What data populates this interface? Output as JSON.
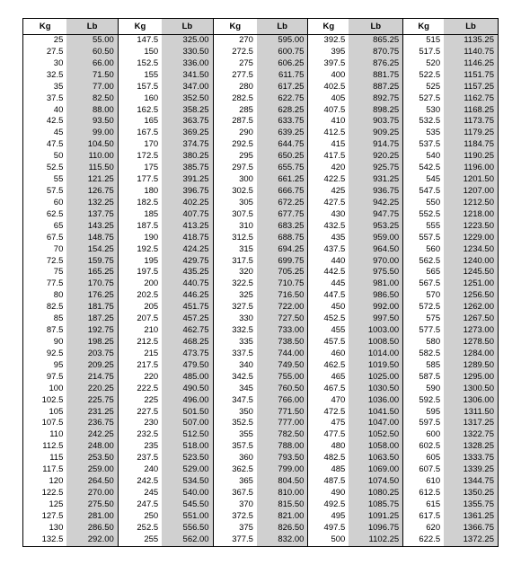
{
  "headers": {
    "kg": "Kg",
    "lb": "Lb"
  },
  "blocks": [
    [
      {
        "kg": "25",
        "lb": "55.00"
      },
      {
        "kg": "27.5",
        "lb": "60.50"
      },
      {
        "kg": "30",
        "lb": "66.00"
      },
      {
        "kg": "32.5",
        "lb": "71.50"
      },
      {
        "kg": "35",
        "lb": "77.00"
      },
      {
        "kg": "37.5",
        "lb": "82.50"
      },
      {
        "kg": "40",
        "lb": "88.00"
      },
      {
        "kg": "42.5",
        "lb": "93.50"
      },
      {
        "kg": "45",
        "lb": "99.00"
      },
      {
        "kg": "47.5",
        "lb": "104.50"
      },
      {
        "kg": "50",
        "lb": "110.00"
      },
      {
        "kg": "52.5",
        "lb": "115.50"
      },
      {
        "kg": "55",
        "lb": "121.25"
      },
      {
        "kg": "57.5",
        "lb": "126.75"
      },
      {
        "kg": "60",
        "lb": "132.25"
      },
      {
        "kg": "62.5",
        "lb": "137.75"
      },
      {
        "kg": "65",
        "lb": "143.25"
      },
      {
        "kg": "67.5",
        "lb": "148.75"
      },
      {
        "kg": "70",
        "lb": "154.25"
      },
      {
        "kg": "72.5",
        "lb": "159.75"
      },
      {
        "kg": "75",
        "lb": "165.25"
      },
      {
        "kg": "77.5",
        "lb": "170.75"
      },
      {
        "kg": "80",
        "lb": "176.25"
      },
      {
        "kg": "82.5",
        "lb": "181.75"
      },
      {
        "kg": "85",
        "lb": "187.25"
      },
      {
        "kg": "87.5",
        "lb": "192.75"
      },
      {
        "kg": "90",
        "lb": "198.25"
      },
      {
        "kg": "92.5",
        "lb": "203.75"
      },
      {
        "kg": "95",
        "lb": "209.25"
      },
      {
        "kg": "97.5",
        "lb": "214.75"
      },
      {
        "kg": "100",
        "lb": "220.25"
      },
      {
        "kg": "102.5",
        "lb": "225.75"
      },
      {
        "kg": "105",
        "lb": "231.25"
      },
      {
        "kg": "107.5",
        "lb": "236.75"
      },
      {
        "kg": "110",
        "lb": "242.25"
      },
      {
        "kg": "112.5",
        "lb": "248.00"
      },
      {
        "kg": "115",
        "lb": "253.50"
      },
      {
        "kg": "117.5",
        "lb": "259.00"
      },
      {
        "kg": "120",
        "lb": "264.50"
      },
      {
        "kg": "122.5",
        "lb": "270.00"
      },
      {
        "kg": "125",
        "lb": "275.50"
      },
      {
        "kg": "127.5",
        "lb": "281.00"
      },
      {
        "kg": "130",
        "lb": "286.50"
      },
      {
        "kg": "132.5",
        "lb": "292.00"
      }
    ],
    [
      {
        "kg": "147.5",
        "lb": "325.00"
      },
      {
        "kg": "150",
        "lb": "330.50"
      },
      {
        "kg": "152.5",
        "lb": "336.00"
      },
      {
        "kg": "155",
        "lb": "341.50"
      },
      {
        "kg": "157.5",
        "lb": "347.00"
      },
      {
        "kg": "160",
        "lb": "352.50"
      },
      {
        "kg": "162.5",
        "lb": "358.25"
      },
      {
        "kg": "165",
        "lb": "363.75"
      },
      {
        "kg": "167.5",
        "lb": "369.25"
      },
      {
        "kg": "170",
        "lb": "374.75"
      },
      {
        "kg": "172.5",
        "lb": "380.25"
      },
      {
        "kg": "175",
        "lb": "385.75"
      },
      {
        "kg": "177.5",
        "lb": "391.25"
      },
      {
        "kg": "180",
        "lb": "396.75"
      },
      {
        "kg": "182.5",
        "lb": "402.25"
      },
      {
        "kg": "185",
        "lb": "407.75"
      },
      {
        "kg": "187.5",
        "lb": "413.25"
      },
      {
        "kg": "190",
        "lb": "418.75"
      },
      {
        "kg": "192.5",
        "lb": "424.25"
      },
      {
        "kg": "195",
        "lb": "429.75"
      },
      {
        "kg": "197.5",
        "lb": "435.25"
      },
      {
        "kg": "200",
        "lb": "440.75"
      },
      {
        "kg": "202.5",
        "lb": "446.25"
      },
      {
        "kg": "205",
        "lb": "451.75"
      },
      {
        "kg": "207.5",
        "lb": "457.25"
      },
      {
        "kg": "210",
        "lb": "462.75"
      },
      {
        "kg": "212.5",
        "lb": "468.25"
      },
      {
        "kg": "215",
        "lb": "473.75"
      },
      {
        "kg": "217.5",
        "lb": "479.50"
      },
      {
        "kg": "220",
        "lb": "485.00"
      },
      {
        "kg": "222.5",
        "lb": "490.50"
      },
      {
        "kg": "225",
        "lb": "496.00"
      },
      {
        "kg": "227.5",
        "lb": "501.50"
      },
      {
        "kg": "230",
        "lb": "507.00"
      },
      {
        "kg": "232.5",
        "lb": "512.50"
      },
      {
        "kg": "235",
        "lb": "518.00"
      },
      {
        "kg": "237.5",
        "lb": "523.50"
      },
      {
        "kg": "240",
        "lb": "529.00"
      },
      {
        "kg": "242.5",
        "lb": "534.50"
      },
      {
        "kg": "245",
        "lb": "540.00"
      },
      {
        "kg": "247.5",
        "lb": "545.50"
      },
      {
        "kg": "250",
        "lb": "551.00"
      },
      {
        "kg": "252.5",
        "lb": "556.50"
      },
      {
        "kg": "255",
        "lb": "562.00"
      }
    ],
    [
      {
        "kg": "270",
        "lb": "595.00"
      },
      {
        "kg": "272.5",
        "lb": "600.75"
      },
      {
        "kg": "275",
        "lb": "606.25"
      },
      {
        "kg": "277.5",
        "lb": "611.75"
      },
      {
        "kg": "280",
        "lb": "617.25"
      },
      {
        "kg": "282.5",
        "lb": "622.75"
      },
      {
        "kg": "285",
        "lb": "628.25"
      },
      {
        "kg": "287.5",
        "lb": "633.75"
      },
      {
        "kg": "290",
        "lb": "639.25"
      },
      {
        "kg": "292.5",
        "lb": "644.75"
      },
      {
        "kg": "295",
        "lb": "650.25"
      },
      {
        "kg": "297.5",
        "lb": "655.75"
      },
      {
        "kg": "300",
        "lb": "661.25"
      },
      {
        "kg": "302.5",
        "lb": "666.75"
      },
      {
        "kg": "305",
        "lb": "672.25"
      },
      {
        "kg": "307.5",
        "lb": "677.75"
      },
      {
        "kg": "310",
        "lb": "683.25"
      },
      {
        "kg": "312.5",
        "lb": "688.75"
      },
      {
        "kg": "315",
        "lb": "694.25"
      },
      {
        "kg": "317.5",
        "lb": "699.75"
      },
      {
        "kg": "320",
        "lb": "705.25"
      },
      {
        "kg": "322.5",
        "lb": "710.75"
      },
      {
        "kg": "325",
        "lb": "716.50"
      },
      {
        "kg": "327.5",
        "lb": "722.00"
      },
      {
        "kg": "330",
        "lb": "727.50"
      },
      {
        "kg": "332.5",
        "lb": "733.00"
      },
      {
        "kg": "335",
        "lb": "738.50"
      },
      {
        "kg": "337.5",
        "lb": "744.00"
      },
      {
        "kg": "340",
        "lb": "749.50"
      },
      {
        "kg": "342.5",
        "lb": "755.00"
      },
      {
        "kg": "345",
        "lb": "760.50"
      },
      {
        "kg": "347.5",
        "lb": "766.00"
      },
      {
        "kg": "350",
        "lb": "771.50"
      },
      {
        "kg": "352.5",
        "lb": "777.00"
      },
      {
        "kg": "355",
        "lb": "782.50"
      },
      {
        "kg": "357.5",
        "lb": "788.00"
      },
      {
        "kg": "360",
        "lb": "793.50"
      },
      {
        "kg": "362.5",
        "lb": "799.00"
      },
      {
        "kg": "365",
        "lb": "804.50"
      },
      {
        "kg": "367.5",
        "lb": "810.00"
      },
      {
        "kg": "370",
        "lb": "815.50"
      },
      {
        "kg": "372.5",
        "lb": "821.00"
      },
      {
        "kg": "375",
        "lb": "826.50"
      },
      {
        "kg": "377.5",
        "lb": "832.00"
      }
    ],
    [
      {
        "kg": "392.5",
        "lb": "865.25"
      },
      {
        "kg": "395",
        "lb": "870.75"
      },
      {
        "kg": "397.5",
        "lb": "876.25"
      },
      {
        "kg": "400",
        "lb": "881.75"
      },
      {
        "kg": "402.5",
        "lb": "887.25"
      },
      {
        "kg": "405",
        "lb": "892.75"
      },
      {
        "kg": "407.5",
        "lb": "898.25"
      },
      {
        "kg": "410",
        "lb": "903.75"
      },
      {
        "kg": "412.5",
        "lb": "909.25"
      },
      {
        "kg": "415",
        "lb": "914.75"
      },
      {
        "kg": "417.5",
        "lb": "920.25"
      },
      {
        "kg": "420",
        "lb": "925.75"
      },
      {
        "kg": "422.5",
        "lb": "931.25"
      },
      {
        "kg": "425",
        "lb": "936.75"
      },
      {
        "kg": "427.5",
        "lb": "942.25"
      },
      {
        "kg": "430",
        "lb": "947.75"
      },
      {
        "kg": "432.5",
        "lb": "953.25"
      },
      {
        "kg": "435",
        "lb": "959.00"
      },
      {
        "kg": "437.5",
        "lb": "964.50"
      },
      {
        "kg": "440",
        "lb": "970.00"
      },
      {
        "kg": "442.5",
        "lb": "975.50"
      },
      {
        "kg": "445",
        "lb": "981.00"
      },
      {
        "kg": "447.5",
        "lb": "986.50"
      },
      {
        "kg": "450",
        "lb": "992.00"
      },
      {
        "kg": "452.5",
        "lb": "997.50"
      },
      {
        "kg": "455",
        "lb": "1003.00"
      },
      {
        "kg": "457.5",
        "lb": "1008.50"
      },
      {
        "kg": "460",
        "lb": "1014.00"
      },
      {
        "kg": "462.5",
        "lb": "1019.50"
      },
      {
        "kg": "465",
        "lb": "1025.00"
      },
      {
        "kg": "467.5",
        "lb": "1030.50"
      },
      {
        "kg": "470",
        "lb": "1036.00"
      },
      {
        "kg": "472.5",
        "lb": "1041.50"
      },
      {
        "kg": "475",
        "lb": "1047.00"
      },
      {
        "kg": "477.5",
        "lb": "1052.50"
      },
      {
        "kg": "480",
        "lb": "1058.00"
      },
      {
        "kg": "482.5",
        "lb": "1063.50"
      },
      {
        "kg": "485",
        "lb": "1069.00"
      },
      {
        "kg": "487.5",
        "lb": "1074.50"
      },
      {
        "kg": "490",
        "lb": "1080.25"
      },
      {
        "kg": "492.5",
        "lb": "1085.75"
      },
      {
        "kg": "495",
        "lb": "1091.25"
      },
      {
        "kg": "497.5",
        "lb": "1096.75"
      },
      {
        "kg": "500",
        "lb": "1102.25"
      }
    ],
    [
      {
        "kg": "515",
        "lb": "1135.25"
      },
      {
        "kg": "517.5",
        "lb": "1140.75"
      },
      {
        "kg": "520",
        "lb": "1146.25"
      },
      {
        "kg": "522.5",
        "lb": "1151.75"
      },
      {
        "kg": "525",
        "lb": "1157.25"
      },
      {
        "kg": "527.5",
        "lb": "1162.75"
      },
      {
        "kg": "530",
        "lb": "1168.25"
      },
      {
        "kg": "532.5",
        "lb": "1173.75"
      },
      {
        "kg": "535",
        "lb": "1179.25"
      },
      {
        "kg": "537.5",
        "lb": "1184.75"
      },
      {
        "kg": "540",
        "lb": "1190.25"
      },
      {
        "kg": "542.5",
        "lb": "1196.00"
      },
      {
        "kg": "545",
        "lb": "1201.50"
      },
      {
        "kg": "547.5",
        "lb": "1207.00"
      },
      {
        "kg": "550",
        "lb": "1212.50"
      },
      {
        "kg": "552.5",
        "lb": "1218.00"
      },
      {
        "kg": "555",
        "lb": "1223.50"
      },
      {
        "kg": "557.5",
        "lb": "1229.00"
      },
      {
        "kg": "560",
        "lb": "1234.50"
      },
      {
        "kg": "562.5",
        "lb": "1240.00"
      },
      {
        "kg": "565",
        "lb": "1245.50"
      },
      {
        "kg": "567.5",
        "lb": "1251.00"
      },
      {
        "kg": "570",
        "lb": "1256.50"
      },
      {
        "kg": "572.5",
        "lb": "1262.00"
      },
      {
        "kg": "575",
        "lb": "1267.50"
      },
      {
        "kg": "577.5",
        "lb": "1273.00"
      },
      {
        "kg": "580",
        "lb": "1278.50"
      },
      {
        "kg": "582.5",
        "lb": "1284.00"
      },
      {
        "kg": "585",
        "lb": "1289.50"
      },
      {
        "kg": "587.5",
        "lb": "1295.00"
      },
      {
        "kg": "590",
        "lb": "1300.50"
      },
      {
        "kg": "592.5",
        "lb": "1306.00"
      },
      {
        "kg": "595",
        "lb": "1311.50"
      },
      {
        "kg": "597.5",
        "lb": "1317.25"
      },
      {
        "kg": "600",
        "lb": "1322.75"
      },
      {
        "kg": "602.5",
        "lb": "1328.25"
      },
      {
        "kg": "605",
        "lb": "1333.75"
      },
      {
        "kg": "607.5",
        "lb": "1339.25"
      },
      {
        "kg": "610",
        "lb": "1344.75"
      },
      {
        "kg": "612.5",
        "lb": "1350.25"
      },
      {
        "kg": "615",
        "lb": "1355.75"
      },
      {
        "kg": "617.5",
        "lb": "1361.25"
      },
      {
        "kg": "620",
        "lb": "1366.75"
      },
      {
        "kg": "622.5",
        "lb": "1372.25"
      }
    ]
  ]
}
